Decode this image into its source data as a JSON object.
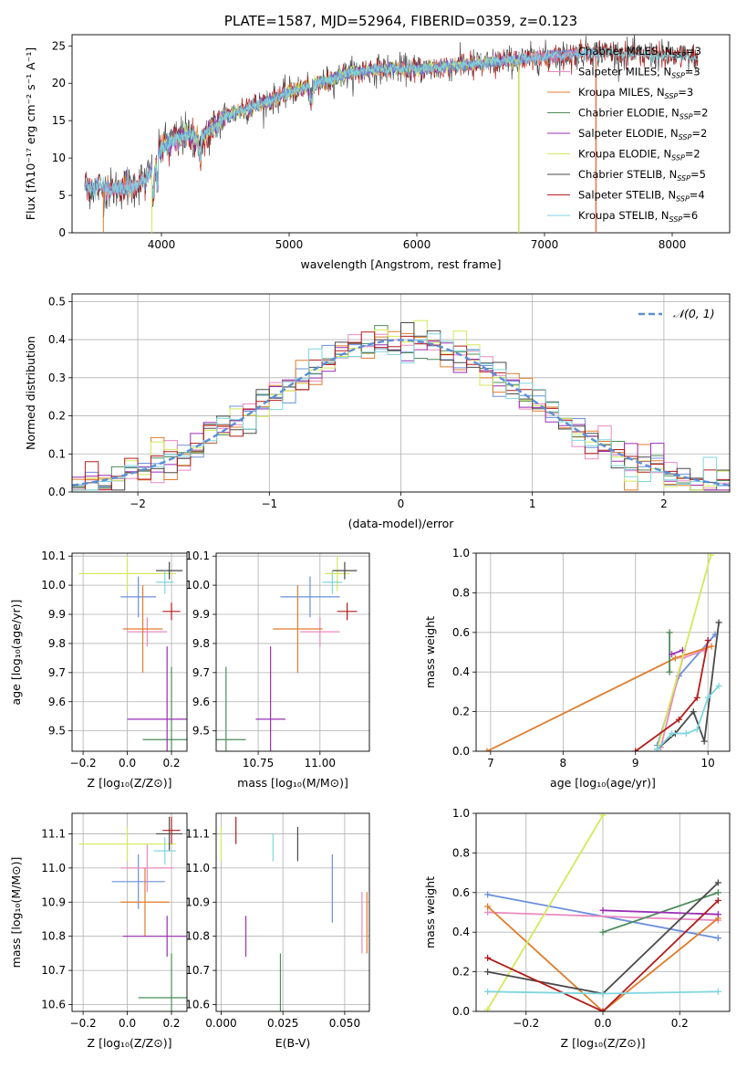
{
  "colors": {
    "chabrier_miles": "#6a8fdb",
    "salpeter_miles": "#e98ac0",
    "kroupa_miles": "#e07c2c",
    "chabrier_elodie": "#4e8c5a",
    "salpeter_elodie": "#9a2fb3",
    "kroupa_elodie": "#d5e85a",
    "chabrier_stelib": "#4a4a4a",
    "salpeter_stelib": "#b31b1b",
    "kroupa_stelib": "#7fd6df",
    "normal_curve": "#5b8fd6"
  },
  "chart_data": [
    {
      "type": "line",
      "title": "PLATE=1587, MJD=52964, FIBERID=0359, z=0.123",
      "xlabel": "wavelength [Angstrom, rest frame]",
      "ylabel": "Flux [fλ10⁻¹⁷ erg cm⁻² s⁻¹ A⁻¹]",
      "xlim": [
        3300,
        8450
      ],
      "ylim": [
        0,
        26.5
      ],
      "xticks": [
        4000,
        5000,
        6000,
        7000,
        8000
      ],
      "yticks": [
        0,
        5,
        10,
        15,
        20,
        25
      ],
      "legend_position": "upper-right",
      "legend": [
        {
          "key": "chabrier_miles",
          "label": "Chabrier MILES, N",
          "sub": "SSP",
          "eq": "=3"
        },
        {
          "key": "salpeter_miles",
          "label": "Salpeter MILES, N",
          "sub": "SSP",
          "eq": "=3"
        },
        {
          "key": "kroupa_miles",
          "label": "Kroupa MILES, N",
          "sub": "SSP",
          "eq": "=3"
        },
        {
          "key": "chabrier_elodie",
          "label": "Chabrier ELODIE, N",
          "sub": "SSP",
          "eq": "=2"
        },
        {
          "key": "salpeter_elodie",
          "label": "Salpeter ELODIE, N",
          "sub": "SSP",
          "eq": "=2"
        },
        {
          "key": "kroupa_elodie",
          "label": "Kroupa ELODIE, N",
          "sub": "SSP",
          "eq": "=2"
        },
        {
          "key": "chabrier_stelib",
          "label": "Chabrier STELIB, N",
          "sub": "SSP",
          "eq": "=5"
        },
        {
          "key": "salpeter_stelib",
          "label": "Salpeter STELIB, N",
          "sub": "SSP",
          "eq": "=4"
        },
        {
          "key": "kroupa_stelib",
          "label": "Kroupa STELIB, N",
          "sub": "SSP",
          "eq": "=6"
        }
      ],
      "continuum": [
        [
          3400,
          6.2
        ],
        [
          3600,
          5.8
        ],
        [
          3800,
          6.3
        ],
        [
          3950,
          8.5
        ],
        [
          4000,
          11.5
        ],
        [
          4200,
          13.2
        ],
        [
          4300,
          12.4
        ],
        [
          4500,
          15.6
        ],
        [
          4800,
          17.3
        ],
        [
          5000,
          18.8
        ],
        [
          5200,
          19.8
        ],
        [
          5500,
          21.5
        ],
        [
          5800,
          22.0
        ],
        [
          6000,
          21.9
        ],
        [
          6300,
          22.3
        ],
        [
          6600,
          22.8
        ],
        [
          7000,
          23.5
        ],
        [
          7400,
          24.2
        ],
        [
          8000,
          23.6
        ],
        [
          8200,
          23.4
        ]
      ],
      "model_spans": [
        {
          "key": "chabrier_miles",
          "x": [
            3400,
            7400
          ]
        },
        {
          "key": "salpeter_miles",
          "x": [
            3540,
            7400
          ]
        },
        {
          "key": "kroupa_miles",
          "x": [
            3540,
            7400
          ]
        },
        {
          "key": "chabrier_elodie",
          "x": [
            3920,
            6800
          ]
        },
        {
          "key": "salpeter_elodie",
          "x": [
            3920,
            6800
          ]
        },
        {
          "key": "kroupa_elodie",
          "x": [
            3920,
            6800
          ]
        },
        {
          "key": "chabrier_stelib",
          "x": [
            3400,
            8200
          ]
        },
        {
          "key": "salpeter_stelib",
          "x": [
            3400,
            8200
          ]
        },
        {
          "key": "kroupa_stelib",
          "x": [
            3400,
            8200
          ]
        }
      ]
    },
    {
      "type": "line",
      "xlabel": "(data-model)/error",
      "ylabel": "Normed distribution",
      "xlim": [
        -2.5,
        2.5
      ],
      "ylim": [
        0,
        0.52
      ],
      "xticks": [
        -2,
        -1,
        0,
        1,
        2
      ],
      "xtick_labels": [
        "−2",
        "−1",
        "0",
        "1",
        "2"
      ],
      "yticks": [
        0.0,
        0.1,
        0.2,
        0.3,
        0.4,
        0.5
      ],
      "ytick_labels": [
        "0.0",
        "0.1",
        "0.2",
        "0.3",
        "0.4",
        "0.5"
      ],
      "legend_label": "𝒩(0, 1)",
      "legend_position": "upper-right",
      "histogram_bin_width": 0.1
    },
    {
      "type": "scatter",
      "xlabel": "Z [log₁₀(Z/Z⊙)]",
      "ylabel": "age  [log₁₀(age/yr)]",
      "xlim": [
        -0.25,
        0.27
      ],
      "ylim": [
        9.43,
        10.11
      ],
      "xticks": [
        -0.2,
        0.0,
        0.2
      ],
      "xtick_labels": [
        "−0.2",
        "0.0",
        "0.2"
      ],
      "yticks": [
        9.5,
        9.6,
        9.7,
        9.8,
        9.9,
        10.0,
        10.1
      ],
      "ytick_labels": [
        "9.5",
        "9.6",
        "9.7",
        "9.8",
        "9.9",
        "10.0",
        "10.1"
      ],
      "points": [
        {
          "key": "chabrier_miles",
          "x": 0.05,
          "xerr": 0.08,
          "y": 9.96,
          "yerr": 0.07
        },
        {
          "key": "salpeter_miles",
          "x": 0.09,
          "xerr": 0.09,
          "y": 9.84,
          "yerr": 0.05
        },
        {
          "key": "kroupa_miles",
          "x": 0.07,
          "xerr": 0.09,
          "y": 9.85,
          "yerr": 0.15
        },
        {
          "key": "chabrier_elodie",
          "x": 0.2,
          "xerr": 0.13,
          "y": 9.47,
          "yerr": 0.25
        },
        {
          "key": "salpeter_elodie",
          "x": 0.18,
          "xerr": 0.18,
          "y": 9.54,
          "yerr": 0.25
        },
        {
          "key": "kroupa_elodie",
          "x": 0.0,
          "xerr": 0.22,
          "y": 10.04,
          "yerr": 0.06
        },
        {
          "key": "chabrier_stelib",
          "x": 0.19,
          "xerr": 0.06,
          "y": 10.05,
          "yerr": 0.03
        },
        {
          "key": "salpeter_stelib",
          "x": 0.2,
          "xerr": 0.04,
          "y": 9.91,
          "yerr": 0.03
        },
        {
          "key": "kroupa_stelib",
          "x": 0.17,
          "xerr": 0.04,
          "y": 10.01,
          "yerr": 0.04
        }
      ]
    },
    {
      "type": "scatter",
      "xlabel": "mass [log₁₀(M/M⊙)]",
      "ylabel": "",
      "xlim": [
        10.58,
        11.2
      ],
      "ylim": [
        9.43,
        10.11
      ],
      "xticks": [
        10.75,
        11.0
      ],
      "xtick_labels": [
        "10.75",
        "11.00"
      ],
      "yticks": [
        9.5,
        9.6,
        9.7,
        9.8,
        9.9,
        10.0,
        10.1
      ],
      "ytick_labels": [
        "9.5",
        "9.6",
        "9.7",
        "9.8",
        "9.9",
        "10.0",
        "10.1"
      ],
      "points": [
        {
          "key": "chabrier_miles",
          "x": 10.96,
          "xerr": 0.12,
          "y": 9.96,
          "yerr": 0.07
        },
        {
          "key": "salpeter_miles",
          "x": 11.0,
          "xerr": 0.08,
          "y": 9.84,
          "yerr": 0.05
        },
        {
          "key": "kroupa_miles",
          "x": 10.91,
          "xerr": 0.1,
          "y": 9.85,
          "yerr": 0.15
        },
        {
          "key": "chabrier_elodie",
          "x": 10.62,
          "xerr": 0.08,
          "y": 9.47,
          "yerr": 0.25
        },
        {
          "key": "salpeter_elodie",
          "x": 10.8,
          "xerr": 0.06,
          "y": 9.54,
          "yerr": 0.25
        },
        {
          "key": "kroupa_elodie",
          "x": 11.07,
          "xerr": 0.05,
          "y": 10.04,
          "yerr": 0.06
        },
        {
          "key": "chabrier_stelib",
          "x": 11.1,
          "xerr": 0.05,
          "y": 10.05,
          "yerr": 0.03
        },
        {
          "key": "salpeter_stelib",
          "x": 11.11,
          "xerr": 0.04,
          "y": 9.91,
          "yerr": 0.03
        },
        {
          "key": "kroupa_stelib",
          "x": 11.05,
          "xerr": 0.04,
          "y": 10.01,
          "yerr": 0.04
        }
      ]
    },
    {
      "type": "line",
      "xlabel": "age  [log₁₀(age/yr)]",
      "ylabel": "mass weight",
      "xlim": [
        6.8,
        10.3
      ],
      "ylim": [
        0,
        1.0
      ],
      "xticks": [
        7,
        8,
        9,
        10
      ],
      "yticks": [
        0.0,
        0.2,
        0.4,
        0.6,
        0.8,
        1.0
      ],
      "ytick_labels": [
        "0.0",
        "0.2",
        "0.4",
        "0.6",
        "0.8",
        "1.0"
      ],
      "series": [
        {
          "key": "chabrier_miles",
          "points": [
            [
              9.3,
              0.03
            ],
            [
              9.6,
              0.38
            ],
            [
              10.1,
              0.59
            ]
          ]
        },
        {
          "key": "salpeter_miles",
          "points": [
            [
              9.35,
              0.02
            ],
            [
              9.65,
              0.47
            ],
            [
              9.95,
              0.51
            ]
          ]
        },
        {
          "key": "kroupa_miles",
          "points": [
            [
              6.95,
              0.0
            ],
            [
              9.55,
              0.47
            ],
            [
              10.05,
              0.53
            ]
          ]
        },
        {
          "key": "chabrier_elodie",
          "points": [
            [
              9.47,
              0.4
            ],
            [
              9.47,
              0.6
            ]
          ]
        },
        {
          "key": "salpeter_elodie",
          "points": [
            [
              9.5,
              0.49
            ],
            [
              9.65,
              0.51
            ]
          ]
        },
        {
          "key": "kroupa_elodie",
          "points": [
            [
              9.3,
              0.01
            ],
            [
              10.04,
              0.99
            ]
          ]
        },
        {
          "key": "chabrier_stelib",
          "points": [
            [
              9.3,
              0.01
            ],
            [
              9.55,
              0.09
            ],
            [
              9.8,
              0.2
            ],
            [
              9.95,
              0.05
            ],
            [
              10.15,
              0.65
            ]
          ]
        },
        {
          "key": "salpeter_stelib",
          "points": [
            [
              9.0,
              0.0
            ],
            [
              9.6,
              0.16
            ],
            [
              9.85,
              0.27
            ],
            [
              10.0,
              0.56
            ]
          ]
        },
        {
          "key": "kroupa_stelib",
          "points": [
            [
              9.3,
              0.01
            ],
            [
              9.5,
              0.09
            ],
            [
              9.7,
              0.09
            ],
            [
              9.85,
              0.11
            ],
            [
              10.0,
              0.27
            ],
            [
              10.15,
              0.33
            ]
          ]
        }
      ]
    },
    {
      "type": "scatter",
      "xlabel": "Z [log₁₀(Z/Z⊙)]",
      "ylabel": "mass [log₁₀(M/M⊙)]",
      "xlim": [
        -0.25,
        0.27
      ],
      "ylim": [
        10.58,
        11.16
      ],
      "xticks": [
        -0.2,
        0.0,
        0.2
      ],
      "xtick_labels": [
        "−0.2",
        "0.0",
        "0.2"
      ],
      "yticks": [
        10.6,
        10.7,
        10.8,
        10.9,
        11.0,
        11.1
      ],
      "ytick_labels": [
        "10.6",
        "10.7",
        "10.8",
        "10.9",
        "11.0",
        "11.1"
      ],
      "points": [
        {
          "key": "chabrier_miles",
          "x": 0.05,
          "xerr": 0.12,
          "y": 10.96,
          "yerr": 0.08
        },
        {
          "key": "salpeter_miles",
          "x": 0.09,
          "xerr": 0.12,
          "y": 11.0,
          "yerr": 0.07
        },
        {
          "key": "kroupa_miles",
          "x": 0.08,
          "xerr": 0.11,
          "y": 10.9,
          "yerr": 0.1
        },
        {
          "key": "chabrier_elodie",
          "x": 0.2,
          "xerr": 0.15,
          "y": 10.62,
          "yerr": 0.13
        },
        {
          "key": "salpeter_elodie",
          "x": 0.18,
          "xerr": 0.2,
          "y": 10.8,
          "yerr": 0.06
        },
        {
          "key": "kroupa_elodie",
          "x": 0.0,
          "xerr": 0.22,
          "y": 11.07,
          "yerr": 0.05
        },
        {
          "key": "chabrier_stelib",
          "x": 0.19,
          "xerr": 0.06,
          "y": 11.1,
          "yerr": 0.05
        },
        {
          "key": "salpeter_stelib",
          "x": 0.2,
          "xerr": 0.04,
          "y": 11.11,
          "yerr": 0.04
        },
        {
          "key": "kroupa_stelib",
          "x": 0.17,
          "xerr": 0.05,
          "y": 11.05,
          "yerr": 0.04
        }
      ]
    },
    {
      "type": "scatter",
      "xlabel": "E(B-V)",
      "ylabel": "",
      "xlim": [
        -0.002,
        0.06
      ],
      "ylim": [
        10.58,
        11.16
      ],
      "xticks": [
        0.0,
        0.025,
        0.05
      ],
      "xtick_labels": [
        "0.000",
        "0.025",
        "0.050"
      ],
      "yticks": [
        10.6,
        10.7,
        10.8,
        10.9,
        11.0,
        11.1
      ],
      "ytick_labels": [
        "10.6",
        "10.7",
        "10.8",
        "10.9",
        "11.0",
        "11.1"
      ],
      "points": [
        {
          "key": "chabrier_miles",
          "x": 0.045,
          "y": 10.94,
          "yerr": 0.1
        },
        {
          "key": "salpeter_miles",
          "x": 0.057,
          "y": 10.84,
          "yerr": 0.09
        },
        {
          "key": "kroupa_miles",
          "x": 0.059,
          "y": 10.84,
          "yerr": 0.09
        },
        {
          "key": "chabrier_elodie",
          "x": 0.024,
          "y": 10.62,
          "yerr": 0.13
        },
        {
          "key": "salpeter_elodie",
          "x": 0.01,
          "y": 10.8,
          "yerr": 0.06
        },
        {
          "key": "kroupa_elodie",
          "x": 0.0,
          "y": 11.07,
          "yerr": 0.05
        },
        {
          "key": "chabrier_stelib",
          "x": 0.031,
          "y": 11.07,
          "yerr": 0.05
        },
        {
          "key": "salpeter_stelib",
          "x": 0.006,
          "y": 11.11,
          "yerr": 0.04
        },
        {
          "key": "kroupa_stelib",
          "x": 0.021,
          "y": 11.06,
          "yerr": 0.04
        }
      ]
    },
    {
      "type": "line",
      "xlabel": "Z [log₁₀(Z/Z⊙)]",
      "ylabel": "mass weight",
      "xlim": [
        -0.33,
        0.33
      ],
      "ylim": [
        0,
        1.0
      ],
      "xticks": [
        -0.2,
        0.0,
        0.2
      ],
      "xtick_labels": [
        "−0.2",
        "0.0",
        "0.2"
      ],
      "yticks": [
        0.0,
        0.2,
        0.4,
        0.6,
        0.8,
        1.0
      ],
      "ytick_labels": [
        "0.0",
        "0.2",
        "0.4",
        "0.6",
        "0.8",
        "1.0"
      ],
      "series": [
        {
          "key": "chabrier_miles",
          "points": [
            [
              -0.3,
              0.59
            ],
            [
              0.3,
              0.37
            ]
          ]
        },
        {
          "key": "salpeter_miles",
          "points": [
            [
              -0.3,
              0.5
            ],
            [
              0.3,
              0.46
            ]
          ]
        },
        {
          "key": "kroupa_miles",
          "points": [
            [
              -0.3,
              0.53
            ],
            [
              0.0,
              0.0
            ],
            [
              0.3,
              0.47
            ]
          ]
        },
        {
          "key": "chabrier_elodie",
          "points": [
            [
              0.0,
              0.4
            ],
            [
              0.3,
              0.6
            ]
          ]
        },
        {
          "key": "salpeter_elodie",
          "points": [
            [
              0.0,
              0.51
            ],
            [
              0.3,
              0.49
            ]
          ]
        },
        {
          "key": "kroupa_elodie",
          "points": [
            [
              -0.3,
              0.01
            ],
            [
              0.0,
              0.99
            ]
          ]
        },
        {
          "key": "chabrier_stelib",
          "points": [
            [
              -0.3,
              0.2
            ],
            [
              0.0,
              0.09
            ],
            [
              0.3,
              0.65
            ]
          ]
        },
        {
          "key": "salpeter_stelib",
          "points": [
            [
              -0.3,
              0.27
            ],
            [
              0.0,
              0.0
            ],
            [
              0.3,
              0.56
            ]
          ]
        },
        {
          "key": "kroupa_stelib",
          "points": [
            [
              -0.3,
              0.1
            ],
            [
              0.0,
              0.09
            ],
            [
              0.3,
              0.1
            ]
          ]
        }
      ]
    }
  ]
}
